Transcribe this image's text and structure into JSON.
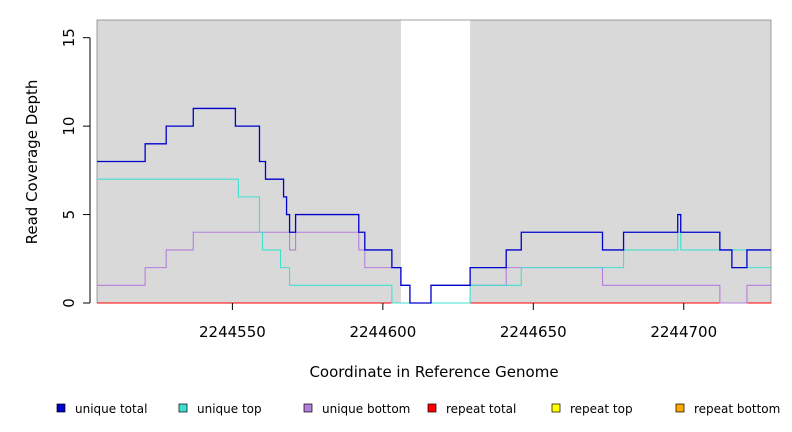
{
  "chart_data": {
    "type": "line",
    "step": true,
    "title": "",
    "xlabel": "Coordinate in Reference Genome",
    "ylabel": "Read Coverage Depth",
    "xlim": [
      2244505,
      2244729
    ],
    "ylim": [
      0,
      16
    ],
    "xticks": [
      2244550,
      2244600,
      2244650,
      2244700
    ],
    "yticks": [
      0,
      5,
      10,
      15
    ],
    "shaded_regions": [
      [
        2244505,
        2244606
      ],
      [
        2244629,
        2244729
      ]
    ],
    "shade_color": "#d9d9d9",
    "legend_position": "bottom",
    "series": [
      {
        "name": "unique total",
        "color": "#0000cd",
        "points": [
          [
            2244505,
            8
          ],
          [
            2244521,
            9
          ],
          [
            2244528,
            10
          ],
          [
            2244537,
            11
          ],
          [
            2244551,
            10
          ],
          [
            2244559,
            8
          ],
          [
            2244561,
            7
          ],
          [
            2244567,
            6
          ],
          [
            2244568,
            5
          ],
          [
            2244569,
            4
          ],
          [
            2244571,
            5
          ],
          [
            2244592,
            4
          ],
          [
            2244594,
            3
          ],
          [
            2244603,
            2
          ],
          [
            2244606,
            1
          ],
          [
            2244609,
            0
          ],
          [
            2244616,
            1
          ],
          [
            2244629,
            2
          ],
          [
            2244641,
            3
          ],
          [
            2244646,
            4
          ],
          [
            2244673,
            3
          ],
          [
            2244680,
            4
          ],
          [
            2244698,
            5
          ],
          [
            2244699,
            4
          ],
          [
            2244712,
            3
          ],
          [
            2244716,
            2
          ],
          [
            2244721,
            3
          ],
          [
            2244729,
            3
          ]
        ]
      },
      {
        "name": "unique top",
        "color": "#40e0d0",
        "points": [
          [
            2244505,
            7
          ],
          [
            2244552,
            6
          ],
          [
            2244559,
            4
          ],
          [
            2244560,
            3
          ],
          [
            2244566,
            2
          ],
          [
            2244569,
            1
          ],
          [
            2244603,
            0
          ],
          [
            2244629,
            1
          ],
          [
            2244646,
            2
          ],
          [
            2244673,
            2
          ],
          [
            2244680,
            3
          ],
          [
            2244698,
            4
          ],
          [
            2244699,
            3
          ],
          [
            2244721,
            2
          ],
          [
            2244729,
            2
          ]
        ]
      },
      {
        "name": "unique bottom",
        "color": "#b57edc",
        "points": [
          [
            2244505,
            1
          ],
          [
            2244521,
            2
          ],
          [
            2244528,
            3
          ],
          [
            2244537,
            4
          ],
          [
            2244569,
            3
          ],
          [
            2244571,
            4
          ],
          [
            2244592,
            3
          ],
          [
            2244594,
            2
          ],
          [
            2244603,
            2
          ],
          [
            2244606,
            1
          ],
          [
            2244609,
            0
          ],
          [
            2244616,
            1
          ],
          [
            2244641,
            2
          ],
          [
            2244673,
            1
          ],
          [
            2244712,
            0
          ],
          [
            2244721,
            1
          ],
          [
            2244729,
            1
          ]
        ]
      },
      {
        "name": "repeat total",
        "color": "#ff0000",
        "points": [
          [
            2244505,
            0
          ],
          [
            2244729,
            0
          ]
        ]
      },
      {
        "name": "repeat top",
        "color": "#ffff00",
        "points": [
          [
            2244505,
            0
          ],
          [
            2244729,
            0
          ]
        ]
      },
      {
        "name": "repeat bottom",
        "color": "#ffa500",
        "points": [
          [
            2244505,
            0
          ],
          [
            2244729,
            0
          ]
        ]
      }
    ]
  }
}
